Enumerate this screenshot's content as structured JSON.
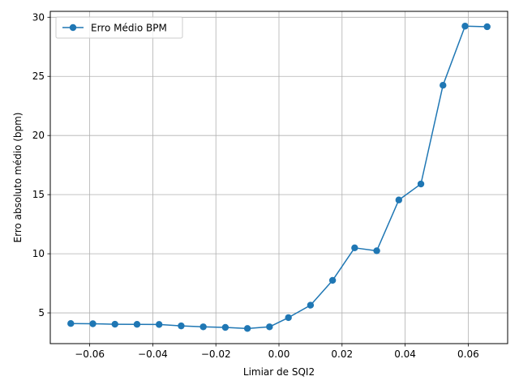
{
  "chart_data": {
    "type": "line",
    "title": "",
    "xlabel": "Limiar de SQI2",
    "ylabel": "Erro absoluto médio (bpm)",
    "xlim": [
      -0.0725,
      0.0725
    ],
    "ylim": [
      2.4,
      30.5
    ],
    "xticks": [
      -0.06,
      -0.04,
      -0.02,
      0.0,
      0.02,
      0.04,
      0.06
    ],
    "xtick_labels": [
      "−0.06",
      "−0.04",
      "−0.02",
      "0.00",
      "0.02",
      "0.04",
      "0.06"
    ],
    "yticks": [
      5,
      10,
      15,
      20,
      25,
      30
    ],
    "ytick_labels": [
      "5",
      "10",
      "15",
      "20",
      "25",
      "30"
    ],
    "grid": true,
    "legend_position": "top-left",
    "colors": {
      "series": "#1f77b4",
      "grid": "#b0b0b0"
    },
    "series": [
      {
        "name": "Erro Médio BPM",
        "x": [
          -0.066,
          -0.059,
          -0.052,
          -0.045,
          -0.038,
          -0.031,
          -0.024,
          -0.017,
          -0.01,
          -0.003,
          0.003,
          0.01,
          0.017,
          0.024,
          0.031,
          0.038,
          0.045,
          0.052,
          0.059,
          0.066
        ],
        "y": [
          4.1,
          4.08,
          4.04,
          4.03,
          4.02,
          3.9,
          3.82,
          3.77,
          3.68,
          3.82,
          4.6,
          5.65,
          7.75,
          10.5,
          10.25,
          14.55,
          15.9,
          24.25,
          29.25,
          29.2
        ]
      }
    ]
  }
}
